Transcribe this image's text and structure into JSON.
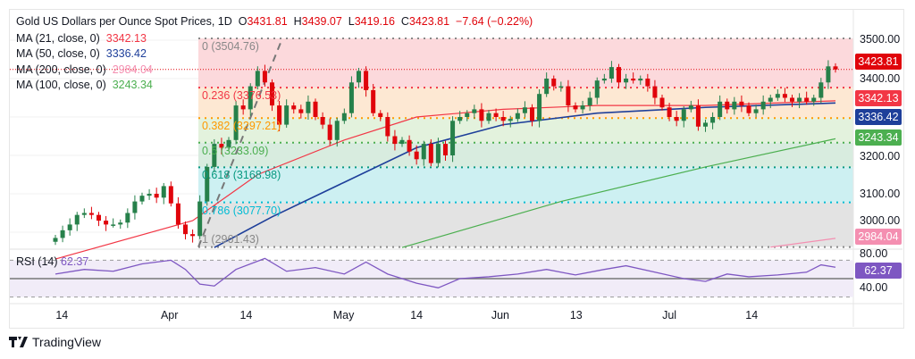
{
  "header": {
    "title": "Gold US Dollars per Ounce Spot Prices, 1D",
    "o_label": "O",
    "open": "3431.81",
    "h_label": "H",
    "high": "3439.07",
    "l_label": "L",
    "low": "3419.16",
    "c_label": "C",
    "close": "3423.81",
    "change": "−7.64 (−0.22%)"
  },
  "indicators": [
    {
      "label": "MA (21, close, 0)",
      "value": "3342.13",
      "color": "#f23645"
    },
    {
      "label": "MA (50, close, 0)",
      "value": "3336.42",
      "color": "#1e3f9a"
    },
    {
      "label": "MA (200, close, 0)",
      "value": "2984.04",
      "color": "#f48fb1"
    },
    {
      "label": "MA (100, close, 0)",
      "value": "3243.34",
      "color": "#4caf50"
    }
  ],
  "fib_levels": [
    {
      "label": "0 (3504.76)",
      "price": 3504.76,
      "color": "#888888",
      "fill": "#fcd9dc"
    },
    {
      "label": "0.236 (3376.53)",
      "price": 3376.53,
      "color": "#f23645",
      "fill": "#fde8d3"
    },
    {
      "label": "0.382 (3297.21)",
      "price": 3297.21,
      "color": "#ff9800",
      "fill": "#e3f2dd"
    },
    {
      "label": "0.5 (3233.09)",
      "price": 3233.09,
      "color": "#4caf50",
      "fill": "#d8ecdf"
    },
    {
      "label": "0.618 (3168.98)",
      "price": 3168.98,
      "color": "#089981",
      "fill": "#cdf0f2"
    },
    {
      "label": "0.786 (3077.70)",
      "price": 3077.7,
      "color": "#00bcd4",
      "fill": "#e3e3e3"
    },
    {
      "label": "1 (2961.43)",
      "price": 2961.43,
      "color": "#888888",
      "fill": null
    }
  ],
  "price_axis": {
    "ticks": [
      "3500.00",
      "3400.00",
      "3200.00",
      "3100.00",
      "3000.00"
    ],
    "tick_values": [
      3500,
      3400,
      3200,
      3100,
      3000
    ],
    "tags": [
      {
        "value": "3423.81",
        "color": "#e0040b"
      },
      {
        "value": "3342.13",
        "color": "#f23645"
      },
      {
        "value": "3336.42",
        "color": "#1e3f9a"
      },
      {
        "value": "3243.34",
        "color": "#4caf50"
      },
      {
        "value": "2984.04",
        "color": "#f48fb1"
      }
    ]
  },
  "rsi": {
    "label": "RSI (14)",
    "value": "62.37",
    "color": "#7e57c2",
    "ticks": [
      "80.00",
      "40.00"
    ],
    "anchors": [
      [
        0,
        55
      ],
      [
        4,
        60
      ],
      [
        8,
        58
      ],
      [
        12,
        66
      ],
      [
        16,
        70
      ],
      [
        18,
        60
      ],
      [
        20,
        44
      ],
      [
        22,
        42
      ],
      [
        25,
        60
      ],
      [
        29,
        72
      ],
      [
        32,
        58
      ],
      [
        36,
        62
      ],
      [
        40,
        55
      ],
      [
        43,
        68
      ],
      [
        46,
        55
      ],
      [
        50,
        45
      ],
      [
        53,
        40
      ],
      [
        56,
        50
      ],
      [
        60,
        52
      ],
      [
        64,
        55
      ],
      [
        68,
        60
      ],
      [
        72,
        54
      ],
      [
        76,
        60
      ],
      [
        79,
        64
      ],
      [
        83,
        57
      ],
      [
        87,
        50
      ],
      [
        90,
        47
      ],
      [
        93,
        55
      ],
      [
        96,
        52
      ],
      [
        100,
        54
      ],
      [
        104,
        57
      ],
      [
        106,
        65
      ],
      [
        108,
        62.37
      ]
    ]
  },
  "chart_data": {
    "type": "candlestick",
    "title": "Gold US Dollars per Ounce Spot Prices, 1D",
    "ylim": [
      2950,
      3520
    ],
    "x_labels": [
      {
        "label": "14",
        "index": 0.9
      },
      {
        "label": "Apr",
        "index": 15.8
      },
      {
        "label": "14",
        "index": 26.4
      },
      {
        "label": "May",
        "index": 39.9
      },
      {
        "label": "14",
        "index": 50
      },
      {
        "label": "Jun",
        "index": 61.6
      },
      {
        "label": "13",
        "index": 72.1
      },
      {
        "label": "Jul",
        "index": 85
      },
      {
        "label": "14",
        "index": 96.4
      }
    ],
    "first_open": 2975,
    "close": [
      2985,
      3005,
      3020,
      3045,
      3050,
      3045,
      3030,
      3020,
      3020,
      3025,
      3050,
      3080,
      3095,
      3100,
      3090,
      3120,
      3075,
      3020,
      2995,
      2990,
      3080,
      3170,
      3230,
      3220,
      3240,
      3330,
      3320,
      3380,
      3420,
      3390,
      3330,
      3280,
      3330,
      3320,
      3310,
      3340,
      3300,
      3280,
      3240,
      3290,
      3310,
      3390,
      3420,
      3370,
      3310,
      3300,
      3250,
      3230,
      3240,
      3210,
      3190,
      3230,
      3180,
      3230,
      3200,
      3290,
      3300,
      3310,
      3320,
      3290,
      3310,
      3300,
      3290,
      3295,
      3310,
      3325,
      3290,
      3360,
      3400,
      3380,
      3380,
      3330,
      3320,
      3330,
      3350,
      3395,
      3400,
      3430,
      3390,
      3400,
      3395,
      3400,
      3380,
      3350,
      3325,
      3300,
      3290,
      3320,
      3330,
      3275,
      3285,
      3300,
      3340,
      3320,
      3340,
      3330,
      3310,
      3320,
      3340,
      3350,
      3360,
      3350,
      3340,
      3350,
      3340,
      3350,
      3390,
      3431.81,
      3423.81
    ],
    "ma21": [
      [
        0,
        2930
      ],
      [
        19,
        3030
      ],
      [
        28,
        3150
      ],
      [
        40,
        3240
      ],
      [
        50,
        3300
      ],
      [
        62,
        3320
      ],
      [
        75,
        3330
      ],
      [
        90,
        3330
      ],
      [
        108,
        3342.13
      ]
    ],
    "ma50": [
      [
        22,
        2960
      ],
      [
        30,
        3040
      ],
      [
        40,
        3130
      ],
      [
        50,
        3220
      ],
      [
        62,
        3280
      ],
      [
        75,
        3310
      ],
      [
        90,
        3325
      ],
      [
        108,
        3336.42
      ]
    ],
    "ma100": [
      [
        48,
        2960
      ],
      [
        70,
        3080
      ],
      [
        90,
        3170
      ],
      [
        108,
        3243.34
      ]
    ],
    "ma200": [
      [
        99,
        2961
      ],
      [
        108,
        2984.04
      ]
    ],
    "colors": {
      "up": "#26804a",
      "down": "#e0040b"
    }
  },
  "footer": {
    "brand": "TradingView"
  }
}
